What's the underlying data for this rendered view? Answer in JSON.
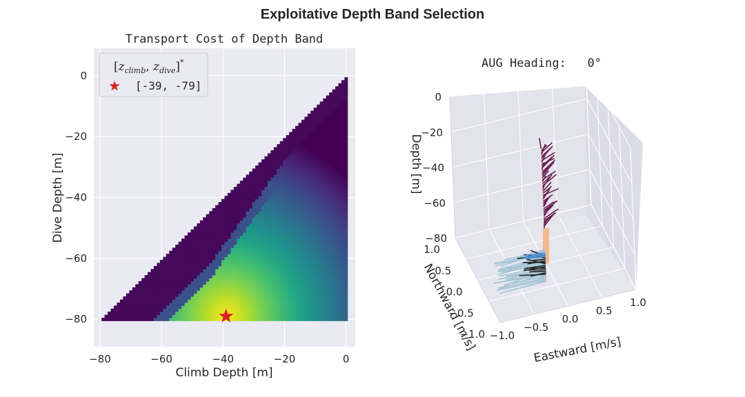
{
  "figure": {
    "suptitle": "Exploitative Depth Band Selection"
  },
  "chart_data": [
    {
      "type": "heatmap",
      "title": "Transport Cost of Depth Band",
      "xlabel": "Climb Depth [m]",
      "ylabel": "Dive Depth [m]",
      "xlim": [
        -82,
        3
      ],
      "ylim": [
        -89,
        9
      ],
      "x_ticks": [
        -80,
        -60,
        -40,
        -20,
        0
      ],
      "y_ticks": [
        -80,
        -60,
        -40,
        -20,
        0
      ],
      "colormap": "viridis",
      "legend": {
        "title": "[z_climb, z_dive]*",
        "title_display": "[zclimb, zdive]*",
        "entry_label": "[-39, -79]",
        "marker": "red star",
        "location": "upper-left"
      },
      "optimum": {
        "climb_depth": -39,
        "dive_depth": -79
      },
      "grid": true
    },
    {
      "type": "3d-quiver",
      "title": "AUG Heading:   0°",
      "xlabel": "Eastward [m/s]",
      "ylabel": "Northward [m/s]",
      "zlabel": "Depth [m]",
      "x_ticks": [
        -1.0,
        -0.5,
        0.0,
        0.5,
        1.0
      ],
      "y_ticks": [
        -1.0,
        -0.5,
        0.0,
        0.5,
        1.0
      ],
      "z_ticks": [
        0,
        -20,
        -40,
        -60,
        -80
      ],
      "x_tick_labels": [
        "−1.0",
        "−0.5",
        "0.0",
        "0.5",
        "1.0"
      ],
      "y_tick_labels": [
        "−1.0",
        "−0.5",
        "0.0",
        "0.5",
        "1.0"
      ],
      "z_tick_labels": [
        "0",
        "−20",
        "−40",
        "−60",
        "−80"
      ],
      "series": [
        {
          "color": "#6b1d4c",
          "depth_range": [
            -15,
            -60
          ]
        },
        {
          "color": "#f5b88c",
          "depth_range": [
            -60,
            -80
          ]
        },
        {
          "color": "#a9c6d6",
          "depth_range": [
            -72,
            -90
          ]
        },
        {
          "color": "#222222",
          "depth_range": [
            -75,
            -86
          ]
        },
        {
          "color": "#4f8fd1",
          "depth_range": [
            -74,
            -76
          ]
        }
      ],
      "grid": true
    }
  ],
  "colors": {
    "axes_bg": "#eaeaf2",
    "grid": "#ffffff",
    "star": "#d62728"
  }
}
